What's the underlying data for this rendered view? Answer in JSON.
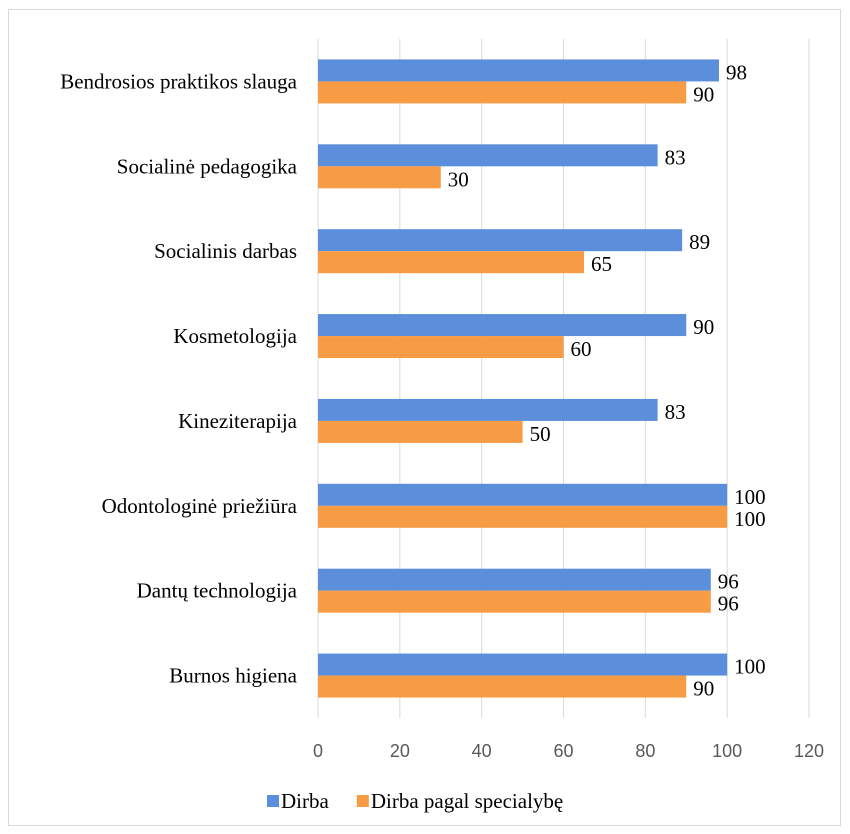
{
  "chart_data": {
    "type": "bar",
    "orientation": "horizontal",
    "title": "",
    "xlabel": "",
    "ylabel": "",
    "categories": [
      "Bendrosios praktikos slauga",
      "Socialinė pedagogika",
      "Socialinis darbas",
      "Kosmetologija",
      "Kineziterapija",
      "Odontologinė priežiūra",
      "Dantų technologija",
      "Burnos higiena"
    ],
    "series": [
      {
        "name": "Dirba",
        "color": "#5b8fdb",
        "values": [
          98,
          83,
          89,
          90,
          83,
          100,
          96,
          100
        ]
      },
      {
        "name": "Dirba pagal specialybę",
        "color": "#f79b45",
        "values": [
          90,
          30,
          65,
          60,
          50,
          100,
          96,
          90
        ]
      }
    ],
    "xlim": [
      0,
      120
    ],
    "xticks": [
      "0",
      "20",
      "40",
      "60",
      "80",
      "100",
      "120"
    ],
    "grid": "vertical",
    "legend": "bottom",
    "data_labels": true
  }
}
